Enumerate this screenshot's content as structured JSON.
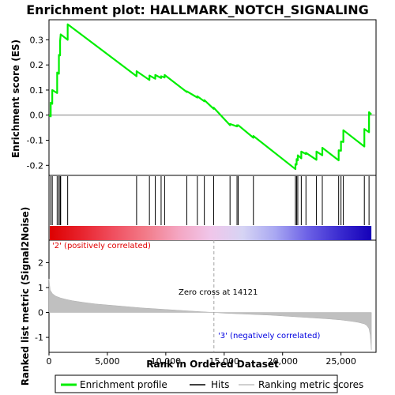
{
  "chart_data": {
    "type": "line",
    "title": "Enrichment plot: HALLMARK_NOTCH_SIGNALING",
    "xlabel": "Rank in Ordered Dataset",
    "ylabel_top": "Enrichment score (ES)",
    "ylabel_bottom": "Ranked list metric (Signal2Noise)",
    "xlim": [
      0,
      28000
    ],
    "x_ticks": [
      0,
      5000,
      10000,
      15000,
      20000,
      25000
    ],
    "x_tick_labels": [
      "0",
      "5,000",
      "10,000",
      "15,000",
      "20,000",
      "25,000"
    ],
    "es_ylim": [
      -0.24,
      0.38
    ],
    "es_ticks": [
      -0.2,
      -0.1,
      0.0,
      0.1,
      0.2,
      0.3
    ],
    "es_tick_labels": [
      "-0.2",
      "-0.1",
      "0.0",
      "0.1",
      "0.2",
      "0.3"
    ],
    "metric_ylim": [
      -1.6,
      2.9
    ],
    "metric_ticks": [
      -1,
      0,
      1,
      2
    ],
    "metric_tick_labels": [
      "-1",
      "0",
      "1",
      "2"
    ],
    "n_genes": 27600,
    "zero_cross": 14121,
    "annotations": {
      "positive": "'2' (positively correlated)",
      "negative": "'3' (negatively correlated)",
      "zero_cross": "Zero cross at 14121"
    },
    "legend": {
      "enrichment": "Enrichment profile",
      "hits": "Hits",
      "ranking": "Ranking metric scores"
    },
    "hits": [
      150,
      280,
      700,
      850,
      950,
      1000,
      1600,
      7500,
      8600,
      9100,
      9600,
      9900,
      11800,
      12700,
      13300,
      14100,
      15500,
      16100,
      16200,
      17500,
      21100,
      21200,
      21300,
      21600,
      22000,
      22900,
      23400,
      24800,
      25000,
      25200,
      27000,
      27400
    ],
    "es_profile": {
      "x": [
        0,
        150,
        150,
        280,
        280,
        700,
        700,
        850,
        850,
        950,
        950,
        1000,
        1000,
        1600,
        1600,
        7500,
        7500,
        8600,
        8600,
        9100,
        9100,
        9600,
        9600,
        9900,
        9900,
        11800,
        11800,
        12700,
        12700,
        13300,
        13300,
        14100,
        14100,
        15500,
        15500,
        16100,
        16100,
        16200,
        16200,
        17500,
        17500,
        21100,
        21100,
        21200,
        21200,
        21300,
        21300,
        21600,
        21600,
        22000,
        22000,
        22900,
        22900,
        23400,
        23400,
        24800,
        24800,
        25000,
        25000,
        25200,
        25200,
        27000,
        27000,
        27400,
        27400,
        27600
      ],
      "y": [
        0.0,
        -0.005,
        0.05,
        0.045,
        0.1,
        0.088,
        0.17,
        0.165,
        0.24,
        0.238,
        0.295,
        0.32,
        0.322,
        0.3,
        0.362,
        0.155,
        0.175,
        0.14,
        0.158,
        0.145,
        0.16,
        0.148,
        0.155,
        0.15,
        0.16,
        0.092,
        0.095,
        0.07,
        0.075,
        0.055,
        0.06,
        0.025,
        0.03,
        -0.04,
        -0.035,
        -0.045,
        -0.04,
        -0.042,
        -0.04,
        -0.09,
        -0.083,
        -0.215,
        -0.195,
        -0.197,
        -0.175,
        -0.18,
        -0.16,
        -0.172,
        -0.145,
        -0.155,
        -0.15,
        -0.178,
        -0.145,
        -0.16,
        -0.13,
        -0.18,
        -0.14,
        -0.142,
        -0.105,
        -0.107,
        -0.06,
        -0.125,
        -0.055,
        -0.068,
        0.012,
        0.003
      ]
    },
    "metric_profile": {
      "x": [
        0,
        100,
        300,
        600,
        1000,
        1500,
        2000,
        3000,
        4000,
        5000,
        6000,
        7000,
        8000,
        9000,
        10000,
        11000,
        12000,
        13000,
        14121,
        15000,
        16000,
        17000,
        18000,
        19000,
        20000,
        21000,
        22000,
        23000,
        24000,
        25000,
        26000,
        26500,
        27000,
        27200,
        27400,
        27500,
        27600
      ],
      "y": [
        1.35,
        0.9,
        0.75,
        0.65,
        0.58,
        0.52,
        0.47,
        0.4,
        0.34,
        0.3,
        0.26,
        0.22,
        0.18,
        0.15,
        0.12,
        0.09,
        0.06,
        0.03,
        0.0,
        -0.03,
        -0.05,
        -0.07,
        -0.09,
        -0.11,
        -0.14,
        -0.17,
        -0.2,
        -0.23,
        -0.26,
        -0.3,
        -0.36,
        -0.4,
        -0.46,
        -0.52,
        -0.65,
        -0.9,
        -1.5
      ]
    },
    "heatmap_colors": [
      "#dd0000",
      "#e8242e",
      "#f05060",
      "#f27c8a",
      "#f4a6c2",
      "#f0c6ea",
      "#d6d4f4",
      "#a9a8f2",
      "#6d62e6",
      "#3b2cd0",
      "#1400b8"
    ],
    "colors": {
      "enrichment": "#00ee00",
      "hits": "#000000",
      "ranking": "#c0c0c0",
      "positive_text": "#e00000",
      "negative_text": "#0000e0"
    }
  }
}
